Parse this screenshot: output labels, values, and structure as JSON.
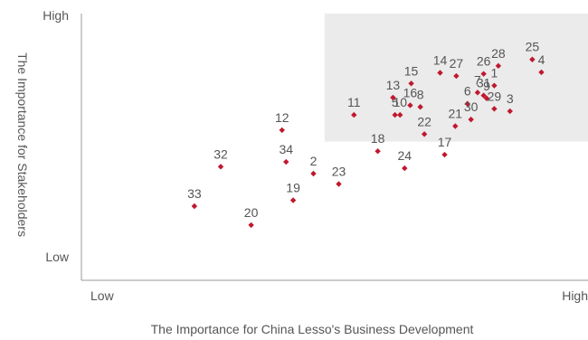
{
  "chart_data": {
    "type": "scatter",
    "xlabel": "The Importance for China Lesso's Business Development",
    "ylabel": "The Importance for Stakeholders",
    "x_tick_labels": [
      "Low",
      "High"
    ],
    "y_tick_labels": [
      "High",
      "Low"
    ],
    "xlim": [
      0,
      100
    ],
    "ylim": [
      0,
      100
    ],
    "grid": false,
    "highlight_region": {
      "x": [
        48,
        100
      ],
      "y": [
        52,
        100
      ],
      "color": "#ebebeb"
    },
    "marker_color": "#c0182e",
    "points": [
      {
        "label": "1",
        "x": 81.5,
        "y": 73.0
      },
      {
        "label": "2",
        "x": 45.8,
        "y": 40.0
      },
      {
        "label": "3",
        "x": 84.6,
        "y": 63.4
      },
      {
        "label": "4",
        "x": 90.8,
        "y": 78.0
      },
      {
        "label": "5",
        "x": 61.9,
        "y": 62.0
      },
      {
        "label": "6",
        "x": 76.2,
        "y": 66.2
      },
      {
        "label": "7",
        "x": 78.2,
        "y": 70.4
      },
      {
        "label": "8",
        "x": 66.9,
        "y": 65.0
      },
      {
        "label": "9",
        "x": 80.0,
        "y": 68.2
      },
      {
        "label": "10",
        "x": 62.9,
        "y": 62.0
      },
      {
        "label": "11",
        "x": 53.8,
        "y": 62.0
      },
      {
        "label": "12",
        "x": 39.6,
        "y": 56.3
      },
      {
        "label": "13",
        "x": 61.5,
        "y": 68.5
      },
      {
        "label": "14",
        "x": 70.8,
        "y": 77.8
      },
      {
        "label": "15",
        "x": 65.1,
        "y": 73.8
      },
      {
        "label": "16",
        "x": 64.9,
        "y": 65.6
      },
      {
        "label": "17",
        "x": 71.7,
        "y": 47.1
      },
      {
        "label": "18",
        "x": 58.5,
        "y": 48.4
      },
      {
        "label": "19",
        "x": 41.8,
        "y": 30.0
      },
      {
        "label": "20",
        "x": 33.5,
        "y": 20.7
      },
      {
        "label": "21",
        "x": 73.8,
        "y": 57.8
      },
      {
        "label": "22",
        "x": 67.7,
        "y": 54.8
      },
      {
        "label": "23",
        "x": 50.8,
        "y": 36.1
      },
      {
        "label": "24",
        "x": 63.8,
        "y": 42.0
      },
      {
        "label": "25",
        "x": 89.0,
        "y": 82.8
      },
      {
        "label": "26",
        "x": 79.4,
        "y": 77.4
      },
      {
        "label": "27",
        "x": 74.0,
        "y": 76.6
      },
      {
        "label": "28",
        "x": 82.3,
        "y": 80.4
      },
      {
        "label": "29",
        "x": 81.5,
        "y": 64.3
      },
      {
        "label": "30",
        "x": 76.9,
        "y": 60.3
      },
      {
        "label": "31",
        "x": 79.4,
        "y": 69.3
      },
      {
        "label": "32",
        "x": 27.5,
        "y": 42.6
      },
      {
        "label": "33",
        "x": 22.3,
        "y": 27.8
      },
      {
        "label": "34",
        "x": 40.4,
        "y": 44.4
      }
    ]
  }
}
